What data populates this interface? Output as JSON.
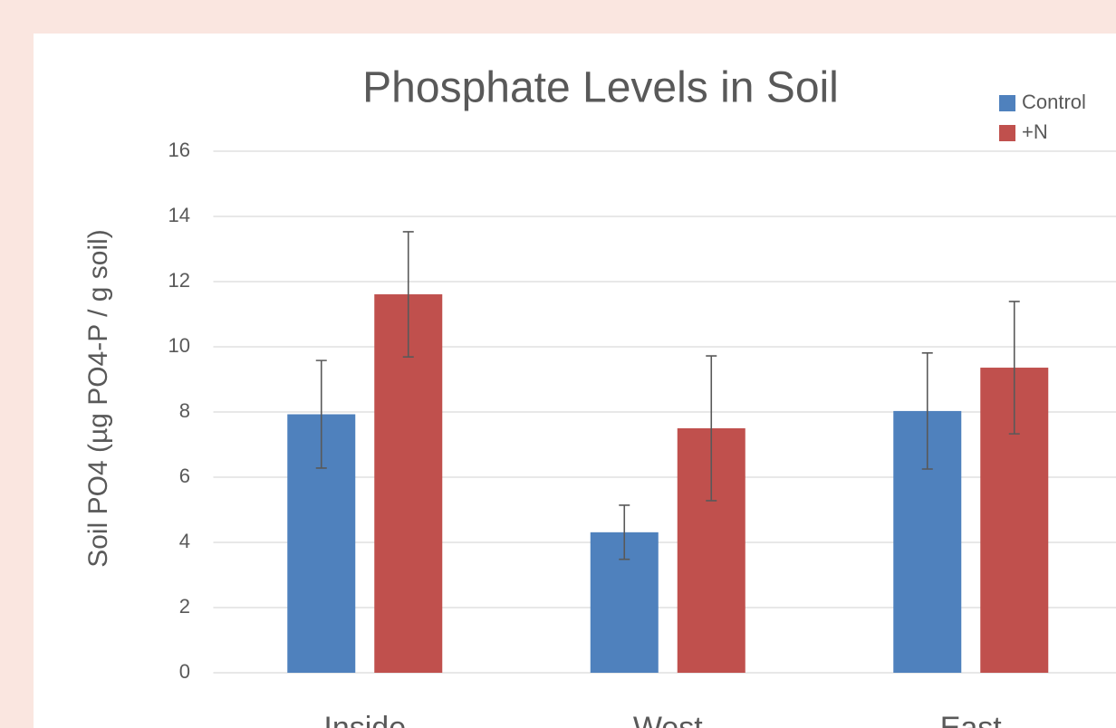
{
  "chart_data": {
    "type": "bar",
    "title": "Phosphate Levels in Soil",
    "y_label": "Soil PO4 (µg PO4-P / g soil)",
    "categories": [
      "Inside",
      "West",
      "East"
    ],
    "series": [
      {
        "name": "Control",
        "color": "#4f81bd",
        "values": [
          7.93,
          4.31,
          8.03
        ],
        "errors": [
          1.65,
          0.83,
          1.78
        ]
      },
      {
        "name": "+N",
        "color": "#c0504d",
        "values": [
          11.61,
          7.5,
          9.36
        ],
        "errors": [
          1.92,
          2.22,
          2.03
        ]
      }
    ],
    "ylim": [
      0,
      16
    ],
    "yticks": [
      0,
      2,
      4,
      6,
      8,
      10,
      12,
      14,
      16
    ],
    "grid": true,
    "legend": "top-right"
  }
}
